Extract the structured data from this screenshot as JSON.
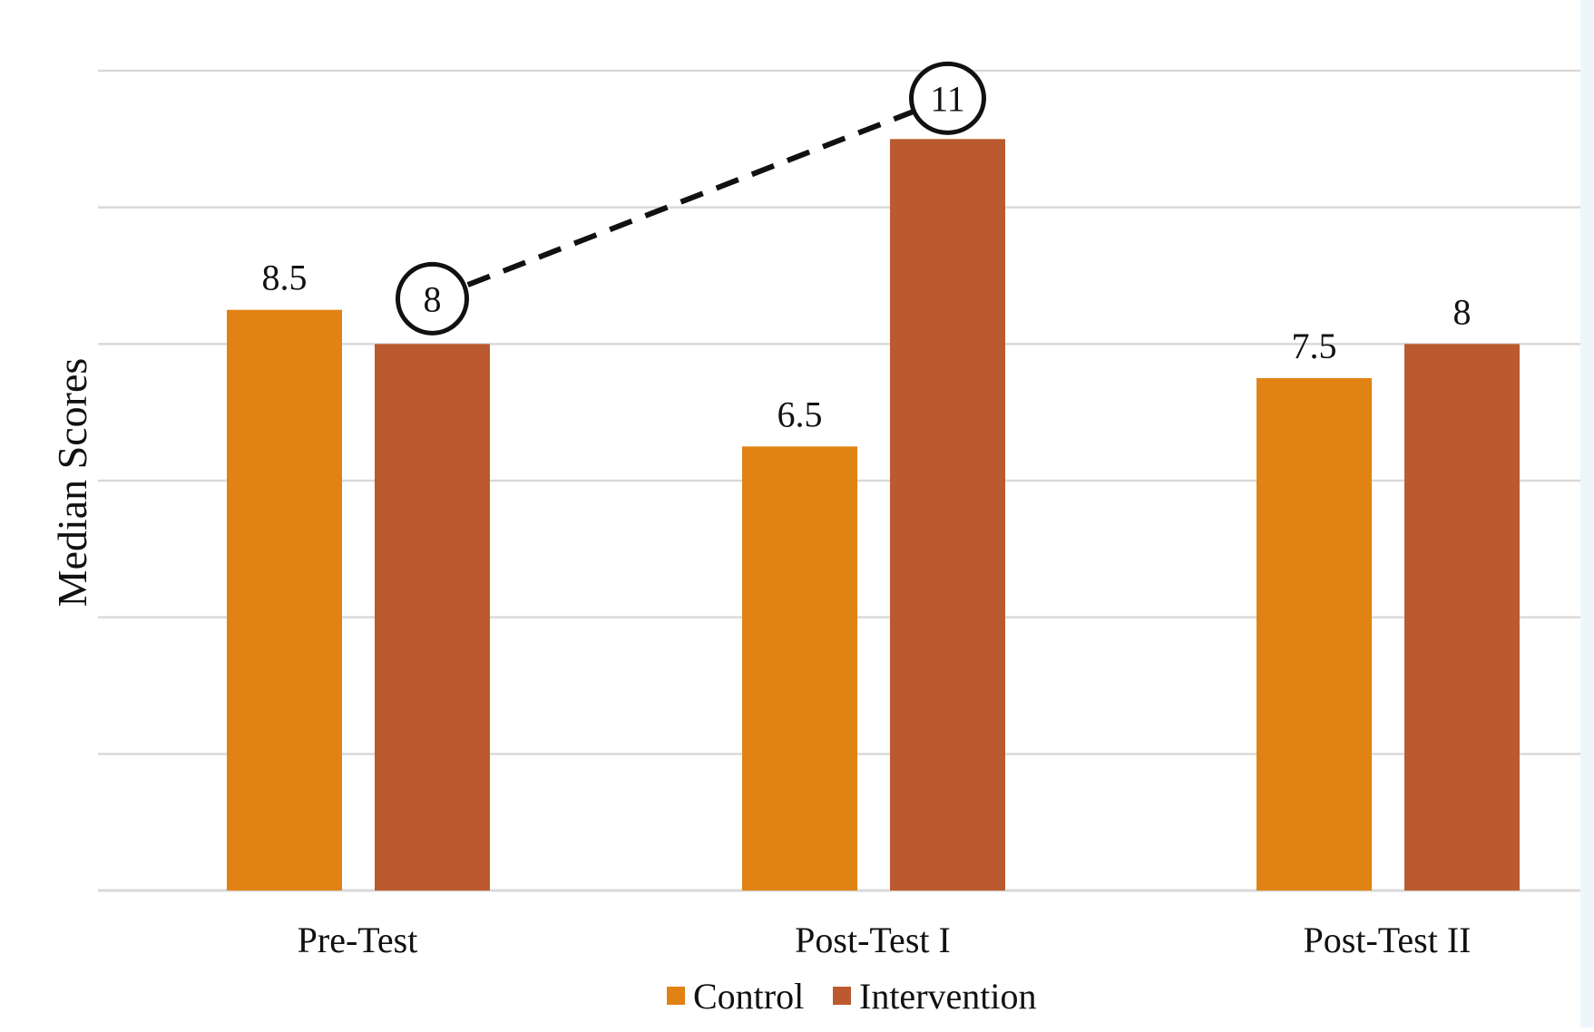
{
  "chart_data": {
    "type": "bar",
    "title": "",
    "xlabel": "",
    "ylabel": "Median Scores",
    "categories": [
      "Pre-Test",
      "Post-Test I",
      "Post-Test II"
    ],
    "series": [
      {
        "name": "Control",
        "values": [
          8.5,
          6.5,
          7.5
        ],
        "color": "#e08214"
      },
      {
        "name": "Intervention",
        "values": [
          8,
          11,
          8
        ],
        "color": "#bb5a2e"
      }
    ],
    "data_labels": [
      {
        "series": "Control",
        "category": "Pre-Test",
        "text": "8.5"
      },
      {
        "series": "Intervention",
        "category": "Pre-Test",
        "text": "8",
        "circled": true
      },
      {
        "series": "Control",
        "category": "Post-Test I",
        "text": "6.5"
      },
      {
        "series": "Intervention",
        "category": "Post-Test I",
        "text": "11",
        "circled": true
      },
      {
        "series": "Control",
        "category": "Post-Test II",
        "text": "7.5"
      },
      {
        "series": "Intervention",
        "category": "Post-Test II",
        "text": "8"
      }
    ],
    "annotations": [
      {
        "type": "dashed-connector",
        "from": {
          "series": "Intervention",
          "category": "Pre-Test"
        },
        "to": {
          "series": "Intervention",
          "category": "Post-Test I"
        }
      }
    ],
    "ylim": [
      0,
      12
    ],
    "y_gridlines": [
      0,
      2,
      4,
      6,
      8,
      10,
      12
    ],
    "y_tick_labels_shown": false,
    "grid": true,
    "legend": {
      "position": "bottom",
      "entries": [
        "Control",
        "Intervention"
      ]
    },
    "colors": {
      "gridline": "#d9d9d9",
      "text": "#111111",
      "connector": "#111111"
    }
  }
}
